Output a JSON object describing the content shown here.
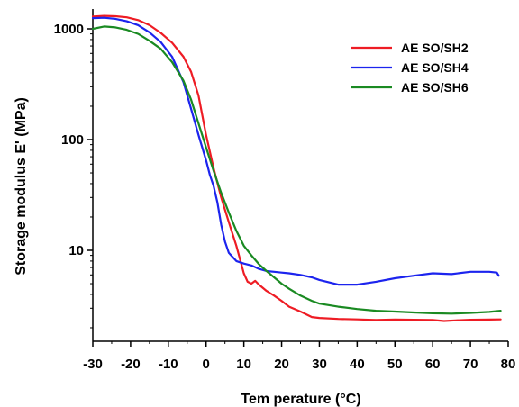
{
  "chart_data": {
    "type": "line",
    "title": "",
    "xlabel": "Tem perature (",
    "xlabel_unit": "°C",
    "xlabel_close": ")",
    "ylabel": "Storage modulus E' (MPa)",
    "xlim": [
      -30,
      80
    ],
    "ylim": [
      2,
      1500
    ],
    "y_scale": "log",
    "grid": false,
    "legend_position": "top-right",
    "x_ticks": [
      "-30",
      "-20",
      "-10",
      "0",
      "10",
      "20",
      "30",
      "40",
      "50",
      "60",
      "70",
      "80"
    ],
    "y_ticks": [
      "1000",
      "100",
      "10"
    ],
    "series": [
      {
        "name": "AE SO/SH2",
        "color": "#ee1c24",
        "x": [
          -30,
          -27,
          -24,
          -21,
          -18,
          -15,
          -12,
          -9,
          -6,
          -4,
          -2,
          0,
          2,
          4,
          6,
          8,
          9,
          10,
          11,
          12,
          13,
          14,
          16,
          18,
          20,
          22,
          25,
          28,
          30,
          35,
          40,
          45,
          50,
          55,
          60,
          63,
          66,
          70,
          75,
          78
        ],
        "y": [
          1290,
          1310,
          1300,
          1270,
          1200,
          1080,
          920,
          750,
          560,
          410,
          250,
          110,
          55,
          30,
          18,
          11,
          8.3,
          6.2,
          5.2,
          5.0,
          5.3,
          4.9,
          4.3,
          3.9,
          3.5,
          3.1,
          2.8,
          2.5,
          2.45,
          2.4,
          2.38,
          2.35,
          2.37,
          2.36,
          2.35,
          2.3,
          2.33,
          2.36,
          2.37,
          2.38
        ]
      },
      {
        "name": "AE SO/SH4",
        "color": "#1c24ee",
        "x": [
          -30,
          -27,
          -24,
          -21,
          -18,
          -15,
          -12,
          -9,
          -6,
          -4,
          -2,
          0,
          1,
          2,
          3,
          4,
          5,
          6,
          8,
          10,
          12,
          14,
          16,
          18,
          20,
          22,
          25,
          28,
          30,
          35,
          40,
          45,
          50,
          55,
          60,
          65,
          70,
          75,
          77,
          77.5
        ],
        "y": [
          1250,
          1260,
          1230,
          1170,
          1080,
          930,
          760,
          560,
          330,
          190,
          110,
          65,
          48,
          38,
          27,
          17,
          12,
          9.5,
          8.0,
          7.6,
          7.3,
          6.8,
          6.5,
          6.4,
          6.3,
          6.2,
          6.0,
          5.7,
          5.4,
          4.9,
          4.9,
          5.2,
          5.6,
          5.9,
          6.2,
          6.1,
          6.4,
          6.4,
          6.3,
          5.9
        ]
      },
      {
        "name": "AE SO/SH6",
        "color": "#1a8a22",
        "x": [
          -30,
          -27,
          -24,
          -21,
          -18,
          -15,
          -12,
          -9,
          -6,
          -4,
          -2,
          0,
          2,
          4,
          6,
          8,
          10,
          12,
          14,
          16,
          18,
          20,
          22,
          25,
          28,
          30,
          35,
          40,
          45,
          50,
          55,
          60,
          65,
          70,
          75,
          78
        ],
        "y": [
          1000,
          1050,
          1030,
          980,
          900,
          780,
          660,
          500,
          340,
          230,
          140,
          85,
          52,
          33,
          22,
          15,
          11,
          9.0,
          7.5,
          6.5,
          5.7,
          5.0,
          4.5,
          3.9,
          3.5,
          3.3,
          3.1,
          2.95,
          2.85,
          2.8,
          2.75,
          2.7,
          2.68,
          2.72,
          2.78,
          2.85
        ]
      }
    ]
  }
}
